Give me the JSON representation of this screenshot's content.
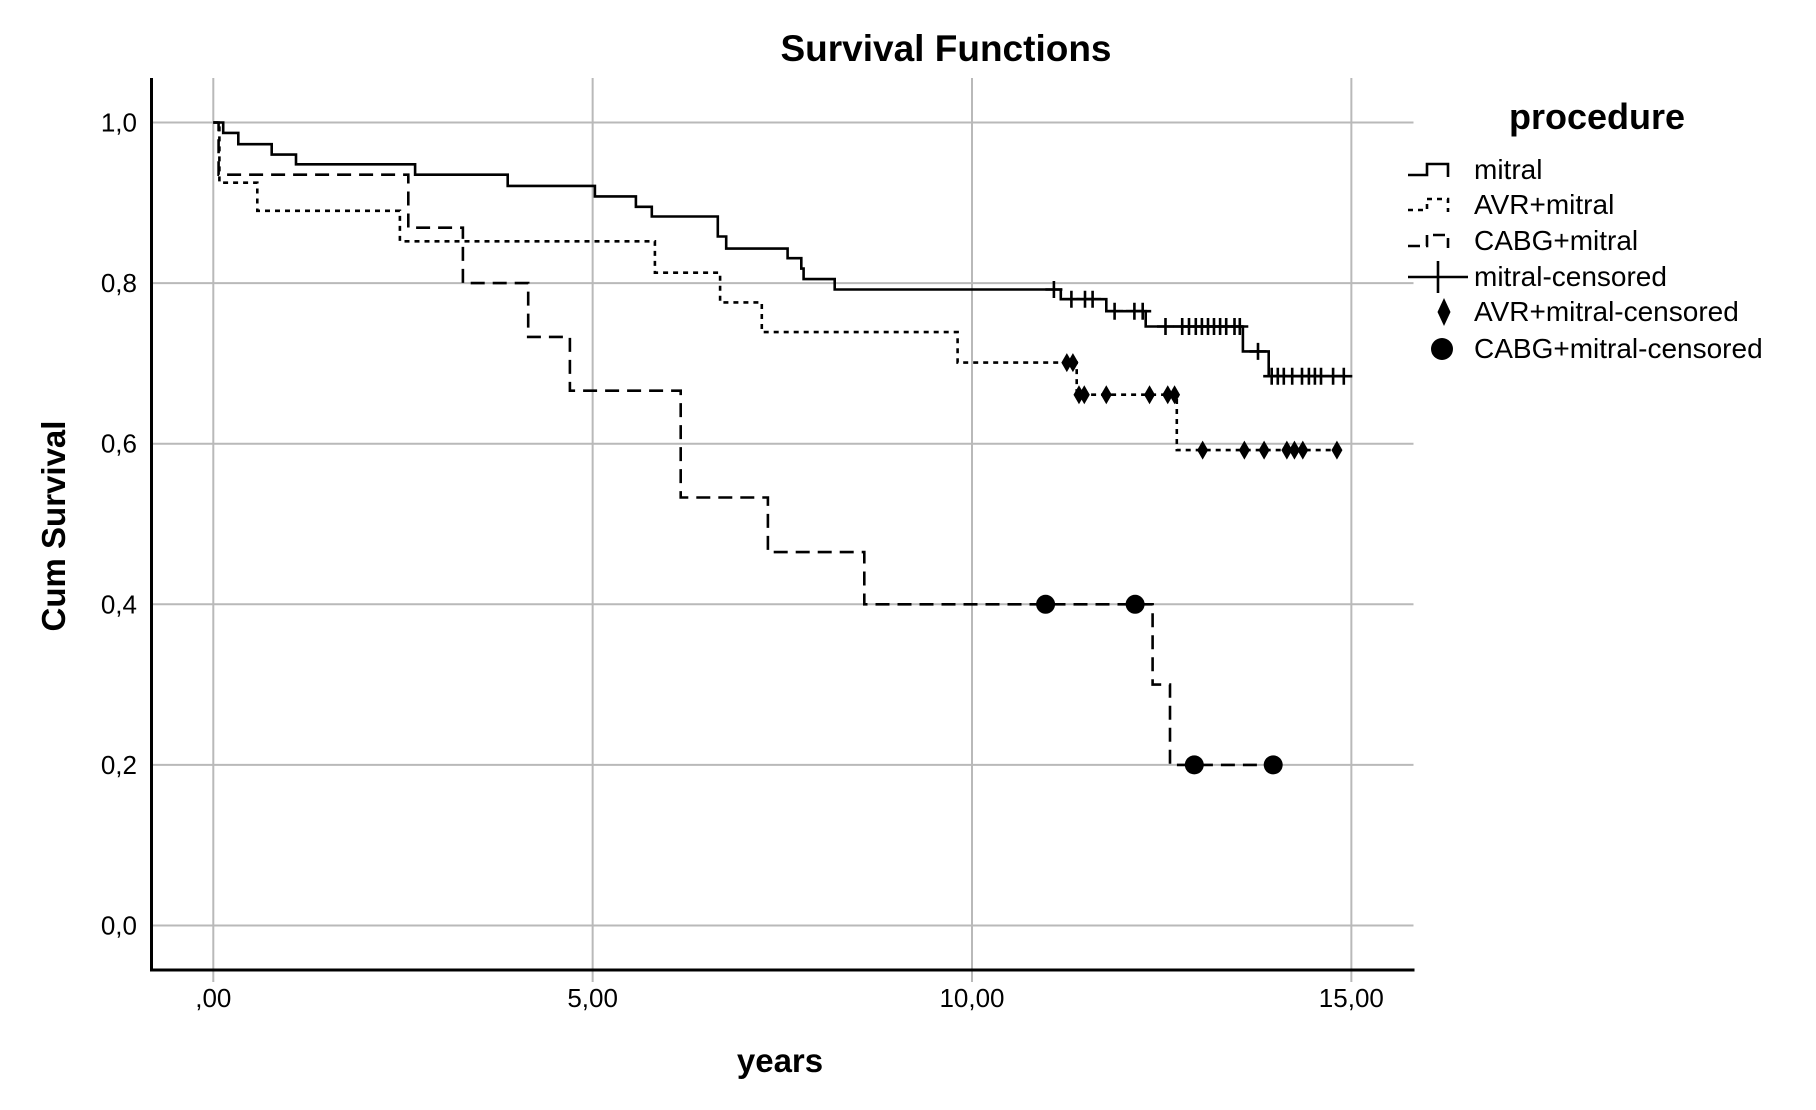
{
  "legend": {
    "title": "procedure",
    "items": [
      {
        "label": "mitral",
        "swatch": "solid-step-line"
      },
      {
        "label": "AVR+mitral",
        "swatch": "dotted-step-line"
      },
      {
        "label": "CABG+mitral",
        "swatch": "dashed-step-line"
      },
      {
        "label": "mitral-censored",
        "swatch": "plus-on-line"
      },
      {
        "label": "AVR+mitral-censored",
        "swatch": "filled-diamond"
      },
      {
        "label": "CABG+mitral-censored",
        "swatch": "filled-circle"
      }
    ]
  },
  "colors": {
    "line": "#000000",
    "grid": "#b9b9b9",
    "axis": "#000000",
    "background": "#ffffff"
  },
  "chart_data": {
    "type": "line",
    "subtype": "kaplan-meier-step-survival",
    "title": "Survival Functions",
    "xlabel": "years",
    "ylabel": "Cum Survival",
    "grid": true,
    "legend_position": "right",
    "xlim": [
      -0.81,
      15.82
    ],
    "ylim": [
      -0.06,
      1.06
    ],
    "x_ticks": {
      "values": [
        0,
        5,
        10,
        15
      ],
      "labels": [
        ",00",
        "5,00",
        "10,00",
        "15,00"
      ]
    },
    "y_ticks": {
      "values": [
        0,
        0.2,
        0.4,
        0.6,
        0.8,
        1.0
      ],
      "labels": [
        "0,0",
        "0,2",
        "0,4",
        "0,6",
        "0,8",
        "1,0"
      ]
    },
    "series": [
      {
        "name": "mitral",
        "style": "solid",
        "steps": [
          [
            0,
            1.0
          ],
          [
            0.13,
            0.987
          ],
          [
            0.33,
            0.973
          ],
          [
            0.77,
            0.96
          ],
          [
            1.09,
            0.948
          ],
          [
            2.66,
            0.935
          ],
          [
            3.88,
            0.921
          ],
          [
            5.03,
            0.908
          ],
          [
            5.57,
            0.895
          ],
          [
            5.78,
            0.883
          ],
          [
            6.65,
            0.858
          ],
          [
            6.76,
            0.843
          ],
          [
            7.57,
            0.831
          ],
          [
            7.75,
            0.818
          ],
          [
            7.78,
            0.805
          ],
          [
            8.19,
            0.792
          ],
          [
            11.17,
            0.78
          ],
          [
            11.77,
            0.765
          ],
          [
            12.29,
            0.746
          ],
          [
            13.57,
            0.715
          ],
          [
            13.91,
            0.684
          ]
        ],
        "end_x": 14.92
      },
      {
        "name": "AVR+mitral",
        "style": "dotted",
        "steps": [
          [
            0,
            1.0
          ],
          [
            0.08,
            0.925
          ],
          [
            0.58,
            0.89
          ],
          [
            2.46,
            0.852
          ],
          [
            5.82,
            0.813
          ],
          [
            6.68,
            0.776
          ],
          [
            7.23,
            0.739
          ],
          [
            9.81,
            0.701
          ],
          [
            11.38,
            0.661
          ],
          [
            12.7,
            0.592
          ]
        ],
        "end_x": 14.9
      },
      {
        "name": "CABG+mitral",
        "style": "dashed",
        "steps": [
          [
            0,
            1.0
          ],
          [
            0.07,
            0.935
          ],
          [
            2.57,
            0.869
          ],
          [
            3.29,
            0.8
          ],
          [
            4.15,
            0.733
          ],
          [
            4.7,
            0.666
          ],
          [
            6.16,
            0.533
          ],
          [
            7.31,
            0.465
          ],
          [
            8.58,
            0.4
          ],
          [
            12.38,
            0.3
          ],
          [
            12.61,
            0.2
          ]
        ],
        "end_x": 14.1
      }
    ],
    "censored_series": [
      {
        "name": "mitral-censored",
        "marker": "plus",
        "points": [
          [
            11.08,
            0.792
          ],
          [
            11.31,
            0.78
          ],
          [
            11.49,
            0.78
          ],
          [
            11.59,
            0.78
          ],
          [
            11.88,
            0.765
          ],
          [
            12.14,
            0.765
          ],
          [
            12.25,
            0.765
          ],
          [
            12.55,
            0.746
          ],
          [
            12.77,
            0.746
          ],
          [
            12.86,
            0.746
          ],
          [
            12.95,
            0.746
          ],
          [
            13.03,
            0.746
          ],
          [
            13.11,
            0.746
          ],
          [
            13.19,
            0.746
          ],
          [
            13.27,
            0.746
          ],
          [
            13.35,
            0.746
          ],
          [
            13.46,
            0.746
          ],
          [
            13.53,
            0.746
          ],
          [
            13.77,
            0.715
          ],
          [
            13.95,
            0.684
          ],
          [
            14.03,
            0.684
          ],
          [
            14.11,
            0.684
          ],
          [
            14.22,
            0.684
          ],
          [
            14.35,
            0.684
          ],
          [
            14.44,
            0.684
          ],
          [
            14.52,
            0.684
          ],
          [
            14.6,
            0.684
          ],
          [
            14.76,
            0.684
          ],
          [
            14.9,
            0.684
          ]
        ]
      },
      {
        "name": "AVR+mitral-censored",
        "marker": "diamond",
        "points": [
          [
            11.25,
            0.701
          ],
          [
            11.33,
            0.701
          ],
          [
            11.41,
            0.661
          ],
          [
            11.48,
            0.661
          ],
          [
            11.77,
            0.661
          ],
          [
            12.34,
            0.661
          ],
          [
            12.58,
            0.661
          ],
          [
            12.67,
            0.661
          ],
          [
            13.04,
            0.592
          ],
          [
            13.59,
            0.592
          ],
          [
            13.85,
            0.592
          ],
          [
            14.15,
            0.592
          ],
          [
            14.25,
            0.592
          ],
          [
            14.36,
            0.592
          ],
          [
            14.81,
            0.592
          ]
        ]
      },
      {
        "name": "CABG+mitral-censored",
        "marker": "circle",
        "points": [
          [
            10.97,
            0.4
          ],
          [
            12.15,
            0.4
          ],
          [
            12.93,
            0.2
          ],
          [
            13.97,
            0.2
          ]
        ]
      }
    ]
  }
}
